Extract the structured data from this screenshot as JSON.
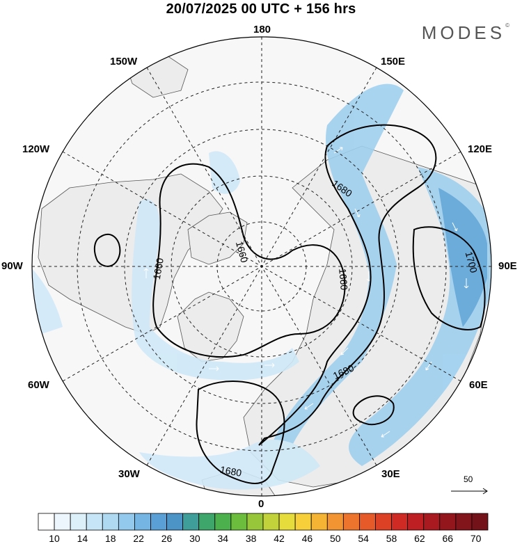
{
  "header": {
    "title": "20/07/2025  00 UTC  + 156 hrs",
    "brand": "MODES",
    "brand_mark": "©"
  },
  "map": {
    "projection": "north-polar-stereographic",
    "colors": {
      "land": "#ececec",
      "ocean": "#f7f7f7",
      "coast": "#555555",
      "grid": "#222222",
      "contour": "#000000",
      "jet_light": "#cfe8f7",
      "jet_mid": "#9fd0ef",
      "jet_strong": "#5fa6d9",
      "vector": "#ffffff"
    },
    "longitude_labels": [
      {
        "text": "180",
        "lon": 180
      },
      {
        "text": "150E",
        "lon": 150
      },
      {
        "text": "120E",
        "lon": 120
      },
      {
        "text": "90E",
        "lon": 90
      },
      {
        "text": "60E",
        "lon": 60
      },
      {
        "text": "30E",
        "lon": 30
      },
      {
        "text": "0",
        "lon": 0
      },
      {
        "text": "30W",
        "lon": -30
      },
      {
        "text": "60W",
        "lon": -60
      },
      {
        "text": "90W",
        "lon": -90
      },
      {
        "text": "120W",
        "lon": -120
      },
      {
        "text": "150W",
        "lon": -150
      }
    ],
    "contour_labels": [
      {
        "text": "1660",
        "id": "c1660-a"
      },
      {
        "text": "1660",
        "id": "c1660-b"
      },
      {
        "text": "1660",
        "id": "c1660-c"
      },
      {
        "text": "1680",
        "id": "c1680-a"
      },
      {
        "text": "1680",
        "id": "c1680-b"
      },
      {
        "text": "1680",
        "id": "c1680-c"
      },
      {
        "text": "1700",
        "id": "c1700-a"
      }
    ],
    "reference_vector": {
      "value": "50"
    }
  },
  "legend": {
    "labels": [
      "10",
      "14",
      "18",
      "22",
      "26",
      "30",
      "34",
      "38",
      "42",
      "46",
      "50",
      "54",
      "58",
      "62",
      "66",
      "70"
    ],
    "colors": [
      "#ffffff",
      "#ecf6fc",
      "#dcf0fa",
      "#c6e6f7",
      "#aed9f1",
      "#93c9ec",
      "#74b5e3",
      "#5aa0d6",
      "#4c93c6",
      "#3f9e9a",
      "#3fa66b",
      "#4cb04c",
      "#6cbc3e",
      "#98c63a",
      "#c2d23a",
      "#e6dc3c",
      "#f6cf3a",
      "#f5b434",
      "#f29431",
      "#ec742c",
      "#e55a28",
      "#dc4125",
      "#cf2b24",
      "#bd1f22",
      "#a81a1f",
      "#94161d",
      "#82141b",
      "#731319"
    ]
  }
}
